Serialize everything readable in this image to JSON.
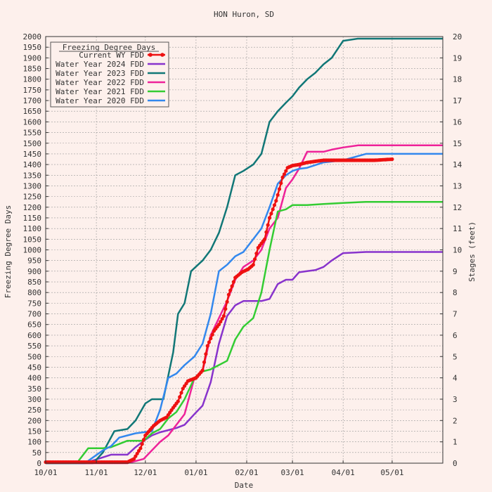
{
  "chart_data": {
    "type": "line",
    "title": "HON Huron, SD",
    "xlabel": "Date",
    "ylabel": "Freezing Degree Days",
    "y2label": "Stages (feet)",
    "x_range": [
      "10/01",
      "06/01"
    ],
    "ylim": [
      0,
      2000
    ],
    "y2lim": [
      0,
      20
    ],
    "grid": true,
    "legend": {
      "title": "Freezing Degree Days",
      "placement": "top-left"
    },
    "x_ticks": [
      "10/01",
      "11/01",
      "12/01",
      "01/01",
      "02/01",
      "03/01",
      "04/01",
      "05/01"
    ],
    "y_ticks": [
      0,
      50,
      100,
      150,
      200,
      250,
      300,
      350,
      400,
      450,
      500,
      550,
      600,
      650,
      700,
      750,
      800,
      850,
      900,
      950,
      1000,
      1050,
      1100,
      1150,
      1200,
      1250,
      1300,
      1350,
      1400,
      1450,
      1500,
      1550,
      1600,
      1650,
      1700,
      1750,
      1800,
      1850,
      1900,
      1950,
      2000
    ],
    "y2_ticks": [
      0,
      1,
      2,
      3,
      4,
      5,
      6,
      7,
      8,
      9,
      10,
      11,
      12,
      13,
      14,
      15,
      16,
      17,
      18,
      19,
      20
    ],
    "series": [
      {
        "name": "Current WY FDD",
        "color": "#ee1111",
        "marker": true,
        "x": [
          "10/01",
          "10/20",
          "11/05",
          "11/20",
          "11/24",
          "11/28",
          "12/01",
          "12/06",
          "12/10",
          "12/14",
          "12/18",
          "12/21",
          "12/24",
          "12/27",
          "01/01",
          "01/05",
          "01/08",
          "01/12",
          "01/15",
          "01/18",
          "01/21",
          "01/25",
          "01/29",
          "02/02",
          "02/05",
          "02/08",
          "02/12",
          "02/15",
          "02/19",
          "02/23",
          "02/26",
          "03/01",
          "03/05",
          "03/10",
          "03/15",
          "03/20",
          "03/25",
          "04/01",
          "04/10",
          "04/20",
          "05/01"
        ],
        "y": [
          5,
          5,
          5,
          5,
          20,
          70,
          130,
          175,
          200,
          215,
          260,
          290,
          350,
          385,
          400,
          435,
          550,
          620,
          650,
          690,
          790,
          870,
          895,
          910,
          930,
          1010,
          1050,
          1150,
          1230,
          1340,
          1385,
          1395,
          1400,
          1410,
          1415,
          1420,
          1420,
          1420,
          1420,
          1420,
          1425
        ]
      },
      {
        "name": "Water Year 2024 FDD",
        "color": "#8833cc",
        "marker": false,
        "x": [
          "10/01",
          "10/25",
          "11/10",
          "11/20",
          "11/25",
          "12/01",
          "12/05",
          "12/10",
          "12/15",
          "12/20",
          "12/25",
          "12/31",
          "01/05",
          "01/10",
          "01/15",
          "01/20",
          "01/25",
          "01/30",
          "02/05",
          "02/10",
          "02/15",
          "02/20",
          "02/25",
          "03/01",
          "03/05",
          "03/10",
          "03/15",
          "03/20",
          "03/25",
          "04/01",
          "04/15",
          "05/01",
          "06/01"
        ],
        "y": [
          0,
          0,
          40,
          40,
          75,
          110,
          130,
          145,
          155,
          165,
          180,
          230,
          270,
          380,
          560,
          690,
          740,
          760,
          760,
          760,
          770,
          840,
          860,
          860,
          895,
          900,
          905,
          920,
          950,
          985,
          990,
          990,
          990
        ]
      },
      {
        "name": "Water Year 2023 FDD",
        "color": "#117777",
        "marker": false,
        "x": [
          "10/01",
          "10/30",
          "11/05",
          "11/12",
          "11/20",
          "11/25",
          "12/01",
          "12/05",
          "12/12",
          "12/18",
          "12/21",
          "12/25",
          "12/29",
          "01/05",
          "01/10",
          "01/15",
          "01/20",
          "01/25",
          "01/30",
          "02/05",
          "02/10",
          "02/15",
          "02/20",
          "02/25",
          "03/01",
          "03/05",
          "03/10",
          "03/15",
          "03/20",
          "03/25",
          "04/01",
          "04/10",
          "04/20",
          "05/01",
          "06/01"
        ],
        "y": [
          0,
          0,
          50,
          150,
          160,
          200,
          280,
          300,
          300,
          520,
          700,
          750,
          900,
          950,
          1000,
          1080,
          1200,
          1350,
          1370,
          1400,
          1450,
          1600,
          1650,
          1690,
          1720,
          1760,
          1800,
          1830,
          1870,
          1900,
          1980,
          1990,
          1990,
          1990,
          1990
        ]
      },
      {
        "name": "Water Year 2022 FDD",
        "color": "#ee2299",
        "marker": false,
        "x": [
          "10/01",
          "11/20",
          "11/30",
          "12/05",
          "12/10",
          "12/15",
          "12/20",
          "12/25",
          "12/31",
          "01/05",
          "01/10",
          "01/15",
          "01/20",
          "01/25",
          "01/30",
          "02/05",
          "02/10",
          "02/15",
          "02/20",
          "02/25",
          "03/01",
          "03/05",
          "03/10",
          "03/15",
          "03/20",
          "03/25",
          "04/01",
          "04/10",
          "04/20",
          "05/01",
          "06/01"
        ],
        "y": [
          0,
          0,
          20,
          60,
          100,
          130,
          180,
          230,
          400,
          430,
          600,
          680,
          760,
          860,
          920,
          950,
          1000,
          1100,
          1150,
          1290,
          1330,
          1380,
          1460,
          1460,
          1460,
          1470,
          1480,
          1490,
          1490,
          1490,
          1490
        ]
      },
      {
        "name": "Water Year 2021 FDD",
        "color": "#33cc33",
        "marker": false,
        "x": [
          "10/01",
          "10/20",
          "10/27",
          "11/05",
          "11/10",
          "11/20",
          "11/30",
          "12/05",
          "12/10",
          "12/15",
          "12/20",
          "12/25",
          "12/31",
          "01/05",
          "01/10",
          "01/15",
          "01/20",
          "01/25",
          "01/30",
          "02/05",
          "02/10",
          "02/15",
          "02/20",
          "02/25",
          "03/01",
          "03/10",
          "03/20",
          "04/01",
          "04/15",
          "05/01",
          "06/01"
        ],
        "y": [
          0,
          0,
          70,
          70,
          75,
          105,
          105,
          140,
          160,
          210,
          240,
          300,
          400,
          430,
          440,
          460,
          480,
          580,
          640,
          680,
          800,
          1000,
          1180,
          1190,
          1210,
          1210,
          1215,
          1220,
          1225,
          1225,
          1225
        ]
      },
      {
        "name": "Water Year 2020 FDD",
        "color": "#3388ee",
        "marker": false,
        "x": [
          "10/01",
          "10/25",
          "11/05",
          "11/10",
          "11/15",
          "11/20",
          "11/25",
          "12/05",
          "12/10",
          "12/15",
          "12/20",
          "12/25",
          "12/31",
          "01/05",
          "01/10",
          "01/15",
          "01/20",
          "01/25",
          "01/30",
          "02/05",
          "02/10",
          "02/15",
          "02/20",
          "02/25",
          "03/01",
          "03/05",
          "03/10",
          "03/20",
          "04/01",
          "04/15",
          "05/01",
          "06/01"
        ],
        "y": [
          0,
          0,
          60,
          80,
          120,
          130,
          140,
          150,
          250,
          400,
          420,
          460,
          500,
          560,
          700,
          900,
          930,
          970,
          990,
          1050,
          1100,
          1200,
          1310,
          1350,
          1370,
          1380,
          1385,
          1410,
          1420,
          1450,
          1450,
          1450
        ]
      }
    ]
  }
}
